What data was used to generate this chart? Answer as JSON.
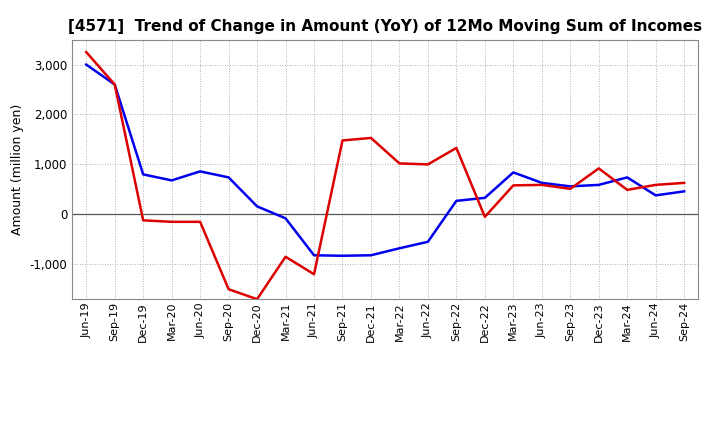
{
  "title": "[4571]  Trend of Change in Amount (YoY) of 12Mo Moving Sum of Incomes",
  "ylabel": "Amount (million yen)",
  "categories": [
    "Jun-19",
    "Sep-19",
    "Dec-19",
    "Mar-20",
    "Jun-20",
    "Sep-20",
    "Dec-20",
    "Mar-21",
    "Jun-21",
    "Sep-21",
    "Dec-21",
    "Mar-22",
    "Jun-22",
    "Sep-22",
    "Dec-22",
    "Mar-23",
    "Jun-23",
    "Sep-23",
    "Dec-23",
    "Mar-24",
    "Jun-24",
    "Sep-24"
  ],
  "ordinary_income": [
    3000,
    2600,
    800,
    680,
    860,
    740,
    160,
    -80,
    -820,
    -830,
    -820,
    -680,
    -550,
    270,
    330,
    840,
    630,
    560,
    590,
    740,
    380,
    460
  ],
  "net_income": [
    3250,
    2600,
    -120,
    -150,
    -150,
    -1500,
    -1700,
    -850,
    -1200,
    1480,
    1530,
    1020,
    1000,
    1330,
    -50,
    580,
    590,
    510,
    920,
    490,
    590,
    630
  ],
  "ordinary_color": "#0000ee",
  "net_color": "#dd0000",
  "background_color": "#ffffff",
  "grid_color": "#999999",
  "ylim": [
    -1700,
    3500
  ],
  "yticks": [
    -1000,
    0,
    1000,
    2000,
    3000
  ],
  "title_fontsize": 11,
  "ylabel_fontsize": 9,
  "tick_fontsize": 8,
  "linewidth": 1.8
}
